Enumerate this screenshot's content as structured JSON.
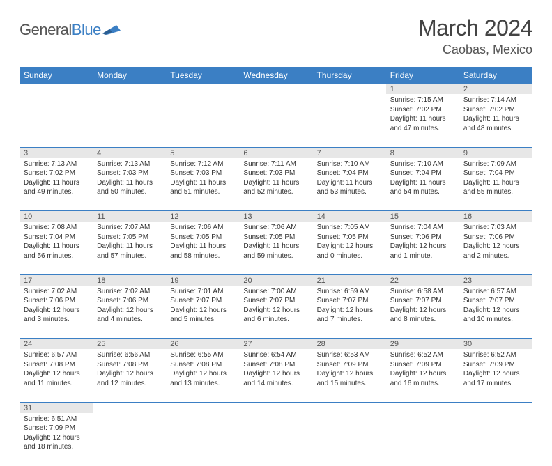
{
  "logo": {
    "part1": "General",
    "part2": "Blue"
  },
  "title": "March 2024",
  "location": "Caobas, Mexico",
  "colors": {
    "header_bg": "#3b7fc4",
    "header_text": "#ffffff",
    "daynum_bg": "#e7e7e7",
    "divider": "#3b7fc4",
    "logo_gray": "#555555",
    "logo_blue": "#3b7fc4"
  },
  "day_headers": [
    "Sunday",
    "Monday",
    "Tuesday",
    "Wednesday",
    "Thursday",
    "Friday",
    "Saturday"
  ],
  "weeks": [
    [
      null,
      null,
      null,
      null,
      null,
      {
        "n": "1",
        "sr": "Sunrise: 7:15 AM",
        "ss": "Sunset: 7:02 PM",
        "dl": "Daylight: 11 hours and 47 minutes."
      },
      {
        "n": "2",
        "sr": "Sunrise: 7:14 AM",
        "ss": "Sunset: 7:02 PM",
        "dl": "Daylight: 11 hours and 48 minutes."
      }
    ],
    [
      {
        "n": "3",
        "sr": "Sunrise: 7:13 AM",
        "ss": "Sunset: 7:02 PM",
        "dl": "Daylight: 11 hours and 49 minutes."
      },
      {
        "n": "4",
        "sr": "Sunrise: 7:13 AM",
        "ss": "Sunset: 7:03 PM",
        "dl": "Daylight: 11 hours and 50 minutes."
      },
      {
        "n": "5",
        "sr": "Sunrise: 7:12 AM",
        "ss": "Sunset: 7:03 PM",
        "dl": "Daylight: 11 hours and 51 minutes."
      },
      {
        "n": "6",
        "sr": "Sunrise: 7:11 AM",
        "ss": "Sunset: 7:03 PM",
        "dl": "Daylight: 11 hours and 52 minutes."
      },
      {
        "n": "7",
        "sr": "Sunrise: 7:10 AM",
        "ss": "Sunset: 7:04 PM",
        "dl": "Daylight: 11 hours and 53 minutes."
      },
      {
        "n": "8",
        "sr": "Sunrise: 7:10 AM",
        "ss": "Sunset: 7:04 PM",
        "dl": "Daylight: 11 hours and 54 minutes."
      },
      {
        "n": "9",
        "sr": "Sunrise: 7:09 AM",
        "ss": "Sunset: 7:04 PM",
        "dl": "Daylight: 11 hours and 55 minutes."
      }
    ],
    [
      {
        "n": "10",
        "sr": "Sunrise: 7:08 AM",
        "ss": "Sunset: 7:04 PM",
        "dl": "Daylight: 11 hours and 56 minutes."
      },
      {
        "n": "11",
        "sr": "Sunrise: 7:07 AM",
        "ss": "Sunset: 7:05 PM",
        "dl": "Daylight: 11 hours and 57 minutes."
      },
      {
        "n": "12",
        "sr": "Sunrise: 7:06 AM",
        "ss": "Sunset: 7:05 PM",
        "dl": "Daylight: 11 hours and 58 minutes."
      },
      {
        "n": "13",
        "sr": "Sunrise: 7:06 AM",
        "ss": "Sunset: 7:05 PM",
        "dl": "Daylight: 11 hours and 59 minutes."
      },
      {
        "n": "14",
        "sr": "Sunrise: 7:05 AM",
        "ss": "Sunset: 7:05 PM",
        "dl": "Daylight: 12 hours and 0 minutes."
      },
      {
        "n": "15",
        "sr": "Sunrise: 7:04 AM",
        "ss": "Sunset: 7:06 PM",
        "dl": "Daylight: 12 hours and 1 minute."
      },
      {
        "n": "16",
        "sr": "Sunrise: 7:03 AM",
        "ss": "Sunset: 7:06 PM",
        "dl": "Daylight: 12 hours and 2 minutes."
      }
    ],
    [
      {
        "n": "17",
        "sr": "Sunrise: 7:02 AM",
        "ss": "Sunset: 7:06 PM",
        "dl": "Daylight: 12 hours and 3 minutes."
      },
      {
        "n": "18",
        "sr": "Sunrise: 7:02 AM",
        "ss": "Sunset: 7:06 PM",
        "dl": "Daylight: 12 hours and 4 minutes."
      },
      {
        "n": "19",
        "sr": "Sunrise: 7:01 AM",
        "ss": "Sunset: 7:07 PM",
        "dl": "Daylight: 12 hours and 5 minutes."
      },
      {
        "n": "20",
        "sr": "Sunrise: 7:00 AM",
        "ss": "Sunset: 7:07 PM",
        "dl": "Daylight: 12 hours and 6 minutes."
      },
      {
        "n": "21",
        "sr": "Sunrise: 6:59 AM",
        "ss": "Sunset: 7:07 PM",
        "dl": "Daylight: 12 hours and 7 minutes."
      },
      {
        "n": "22",
        "sr": "Sunrise: 6:58 AM",
        "ss": "Sunset: 7:07 PM",
        "dl": "Daylight: 12 hours and 8 minutes."
      },
      {
        "n": "23",
        "sr": "Sunrise: 6:57 AM",
        "ss": "Sunset: 7:07 PM",
        "dl": "Daylight: 12 hours and 10 minutes."
      }
    ],
    [
      {
        "n": "24",
        "sr": "Sunrise: 6:57 AM",
        "ss": "Sunset: 7:08 PM",
        "dl": "Daylight: 12 hours and 11 minutes."
      },
      {
        "n": "25",
        "sr": "Sunrise: 6:56 AM",
        "ss": "Sunset: 7:08 PM",
        "dl": "Daylight: 12 hours and 12 minutes."
      },
      {
        "n": "26",
        "sr": "Sunrise: 6:55 AM",
        "ss": "Sunset: 7:08 PM",
        "dl": "Daylight: 12 hours and 13 minutes."
      },
      {
        "n": "27",
        "sr": "Sunrise: 6:54 AM",
        "ss": "Sunset: 7:08 PM",
        "dl": "Daylight: 12 hours and 14 minutes."
      },
      {
        "n": "28",
        "sr": "Sunrise: 6:53 AM",
        "ss": "Sunset: 7:09 PM",
        "dl": "Daylight: 12 hours and 15 minutes."
      },
      {
        "n": "29",
        "sr": "Sunrise: 6:52 AM",
        "ss": "Sunset: 7:09 PM",
        "dl": "Daylight: 12 hours and 16 minutes."
      },
      {
        "n": "30",
        "sr": "Sunrise: 6:52 AM",
        "ss": "Sunset: 7:09 PM",
        "dl": "Daylight: 12 hours and 17 minutes."
      }
    ],
    [
      {
        "n": "31",
        "sr": "Sunrise: 6:51 AM",
        "ss": "Sunset: 7:09 PM",
        "dl": "Daylight: 12 hours and 18 minutes."
      },
      null,
      null,
      null,
      null,
      null,
      null
    ]
  ]
}
